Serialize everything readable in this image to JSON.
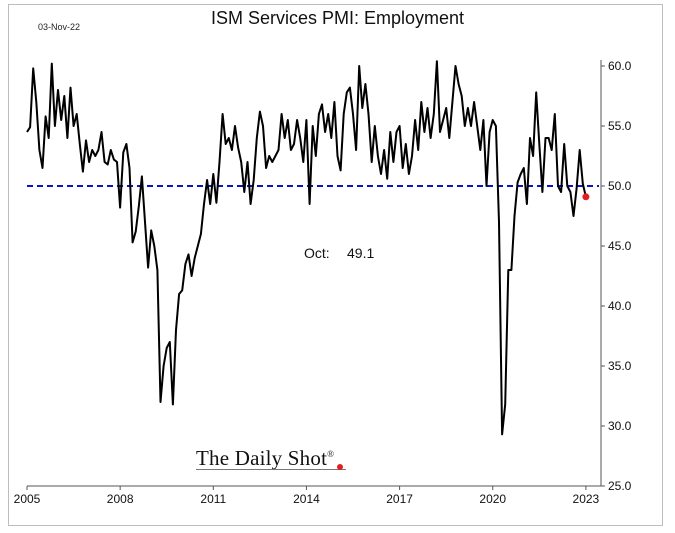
{
  "header": {
    "date": "03-Nov-22",
    "title": "ISM Services PMI: Employment"
  },
  "annotation": {
    "label": "Oct:",
    "value": "49.1"
  },
  "brand": {
    "name": "The Daily Shot",
    "mark": "®"
  },
  "colors": {
    "line": "#000000",
    "reference_line": "#0a14c8",
    "latest_point": "#e02020"
  },
  "chart_data": {
    "type": "line",
    "title": "ISM Services PMI: Employment",
    "xlabel": "",
    "ylabel": "",
    "xlim": [
      2005.0,
      2023.1
    ],
    "ylim": [
      25.0,
      60.0
    ],
    "x_ticks": [
      "2005",
      "2008",
      "2011",
      "2014",
      "2017",
      "2020",
      "2023"
    ],
    "y_ticks": [
      "25.0",
      "30.0",
      "35.0",
      "40.0",
      "45.0",
      "50.0",
      "55.0",
      "60.0"
    ],
    "y_axis_side": "right",
    "grid": false,
    "reference_line": {
      "y": 50.0,
      "style": "dashed"
    },
    "latest_point": {
      "x": "Oct 2022",
      "y": 49.1
    },
    "series": [
      {
        "points": [
          [
            2005.0,
            54.5
          ],
          [
            2005.1,
            54.9
          ],
          [
            2005.2,
            59.8
          ],
          [
            2005.3,
            57.0
          ],
          [
            2005.4,
            53.0
          ],
          [
            2005.5,
            51.5
          ],
          [
            2005.6,
            55.8
          ],
          [
            2005.7,
            54.0
          ],
          [
            2005.8,
            60.2
          ],
          [
            2005.9,
            55.0
          ],
          [
            2006.0,
            58.0
          ],
          [
            2006.1,
            55.5
          ],
          [
            2006.2,
            57.5
          ],
          [
            2006.3,
            54.0
          ],
          [
            2006.4,
            58.2
          ],
          [
            2006.5,
            55.0
          ],
          [
            2006.6,
            56.0
          ],
          [
            2006.7,
            53.5
          ],
          [
            2006.8,
            51.2
          ],
          [
            2006.9,
            53.8
          ],
          [
            2007.0,
            52.0
          ],
          [
            2007.1,
            53.0
          ],
          [
            2007.2,
            52.5
          ],
          [
            2007.3,
            53.0
          ],
          [
            2007.4,
            54.5
          ],
          [
            2007.5,
            52.0
          ],
          [
            2007.6,
            51.8
          ],
          [
            2007.7,
            53.0
          ],
          [
            2007.8,
            52.2
          ],
          [
            2007.9,
            52.0
          ],
          [
            2008.0,
            48.2
          ],
          [
            2008.1,
            52.8
          ],
          [
            2008.2,
            53.5
          ],
          [
            2008.3,
            51.5
          ],
          [
            2008.4,
            45.3
          ],
          [
            2008.5,
            46.2
          ],
          [
            2008.6,
            48.3
          ],
          [
            2008.7,
            50.8
          ],
          [
            2008.8,
            47.0
          ],
          [
            2008.9,
            43.2
          ],
          [
            2009.0,
            46.3
          ],
          [
            2009.1,
            45.0
          ],
          [
            2009.2,
            43.0
          ],
          [
            2009.3,
            32.0
          ],
          [
            2009.4,
            35.0
          ],
          [
            2009.5,
            36.5
          ],
          [
            2009.6,
            37.0
          ],
          [
            2009.7,
            31.8
          ],
          [
            2009.8,
            38.0
          ],
          [
            2009.9,
            41.0
          ],
          [
            2010.0,
            41.3
          ],
          [
            2010.1,
            43.5
          ],
          [
            2010.2,
            44.3
          ],
          [
            2010.3,
            42.5
          ],
          [
            2010.4,
            44.0
          ],
          [
            2010.5,
            45.0
          ],
          [
            2010.6,
            46.0
          ],
          [
            2010.7,
            48.5
          ],
          [
            2010.8,
            50.5
          ],
          [
            2010.9,
            48.5
          ],
          [
            2011.0,
            51.0
          ],
          [
            2011.1,
            48.6
          ],
          [
            2011.2,
            52.0
          ],
          [
            2011.3,
            56.0
          ],
          [
            2011.4,
            53.5
          ],
          [
            2011.5,
            54.0
          ],
          [
            2011.6,
            53.0
          ],
          [
            2011.7,
            55.0
          ],
          [
            2011.8,
            53.2
          ],
          [
            2011.9,
            52.0
          ],
          [
            2012.0,
            49.5
          ],
          [
            2012.1,
            52.0
          ],
          [
            2012.2,
            48.5
          ],
          [
            2012.3,
            50.5
          ],
          [
            2012.4,
            54.0
          ],
          [
            2012.5,
            56.2
          ],
          [
            2012.6,
            55.0
          ],
          [
            2012.7,
            51.5
          ],
          [
            2012.8,
            52.5
          ],
          [
            2012.9,
            52.0
          ],
          [
            2013.0,
            52.5
          ],
          [
            2013.1,
            53.0
          ],
          [
            2013.2,
            56.0
          ],
          [
            2013.3,
            54.0
          ],
          [
            2013.4,
            55.5
          ],
          [
            2013.5,
            53.0
          ],
          [
            2013.6,
            53.5
          ],
          [
            2013.7,
            55.5
          ],
          [
            2013.8,
            54.0
          ],
          [
            2013.9,
            52.0
          ],
          [
            2014.0,
            55.5
          ],
          [
            2014.1,
            48.5
          ],
          [
            2014.2,
            55.0
          ],
          [
            2014.3,
            52.5
          ],
          [
            2014.4,
            56.0
          ],
          [
            2014.5,
            56.8
          ],
          [
            2014.6,
            54.5
          ],
          [
            2014.7,
            56.0
          ],
          [
            2014.8,
            54.0
          ],
          [
            2014.9,
            57.0
          ],
          [
            2015.0,
            52.5
          ],
          [
            2015.1,
            51.3
          ],
          [
            2015.2,
            56.0
          ],
          [
            2015.3,
            57.8
          ],
          [
            2015.4,
            58.2
          ],
          [
            2015.5,
            56.0
          ],
          [
            2015.6,
            53.0
          ],
          [
            2015.7,
            60.0
          ],
          [
            2015.8,
            56.5
          ],
          [
            2015.9,
            58.5
          ],
          [
            2016.0,
            56.0
          ],
          [
            2016.1,
            52.0
          ],
          [
            2016.2,
            55.0
          ],
          [
            2016.3,
            52.5
          ],
          [
            2016.4,
            51.0
          ],
          [
            2016.5,
            53.0
          ],
          [
            2016.6,
            50.6
          ],
          [
            2016.7,
            54.5
          ],
          [
            2016.8,
            52.0
          ],
          [
            2016.9,
            54.5
          ],
          [
            2017.0,
            55.0
          ],
          [
            2017.1,
            51.5
          ],
          [
            2017.2,
            53.5
          ],
          [
            2017.3,
            51.0
          ],
          [
            2017.4,
            52.5
          ],
          [
            2017.5,
            55.5
          ],
          [
            2017.6,
            53.0
          ],
          [
            2017.7,
            57.0
          ],
          [
            2017.8,
            54.5
          ],
          [
            2017.9,
            56.5
          ],
          [
            2018.0,
            54.0
          ],
          [
            2018.1,
            56.0
          ],
          [
            2018.2,
            60.4
          ],
          [
            2018.3,
            54.5
          ],
          [
            2018.4,
            55.5
          ],
          [
            2018.5,
            56.5
          ],
          [
            2018.6,
            54.0
          ],
          [
            2018.7,
            57.0
          ],
          [
            2018.8,
            60.0
          ],
          [
            2018.9,
            58.5
          ],
          [
            2019.0,
            57.5
          ],
          [
            2019.1,
            55.0
          ],
          [
            2019.2,
            56.5
          ],
          [
            2019.3,
            55.0
          ],
          [
            2019.4,
            57.0
          ],
          [
            2019.5,
            55.0
          ],
          [
            2019.6,
            53.0
          ],
          [
            2019.7,
            55.5
          ],
          [
            2019.8,
            50.0
          ],
          [
            2019.9,
            54.5
          ],
          [
            2020.0,
            55.5
          ],
          [
            2020.1,
            55.0
          ],
          [
            2020.2,
            47.0
          ],
          [
            2020.3,
            29.3
          ],
          [
            2020.4,
            31.8
          ],
          [
            2020.5,
            43.0
          ],
          [
            2020.6,
            43.0
          ],
          [
            2020.7,
            47.5
          ],
          [
            2020.8,
            50.3
          ],
          [
            2020.9,
            51.0
          ],
          [
            2021.0,
            51.5
          ],
          [
            2021.1,
            48.5
          ],
          [
            2021.2,
            54.0
          ],
          [
            2021.3,
            52.5
          ],
          [
            2021.4,
            57.8
          ],
          [
            2021.5,
            53.5
          ],
          [
            2021.6,
            49.5
          ],
          [
            2021.7,
            54.0
          ],
          [
            2021.8,
            54.0
          ],
          [
            2021.9,
            53.0
          ],
          [
            2022.0,
            56.0
          ],
          [
            2022.1,
            50.0
          ],
          [
            2022.2,
            49.5
          ],
          [
            2022.3,
            53.5
          ],
          [
            2022.4,
            50.0
          ],
          [
            2022.5,
            49.5
          ],
          [
            2022.6,
            47.5
          ],
          [
            2022.7,
            49.8
          ],
          [
            2022.8,
            53.0
          ],
          [
            2022.9,
            50.2
          ],
          [
            2023.0,
            49.1
          ]
        ]
      }
    ]
  }
}
